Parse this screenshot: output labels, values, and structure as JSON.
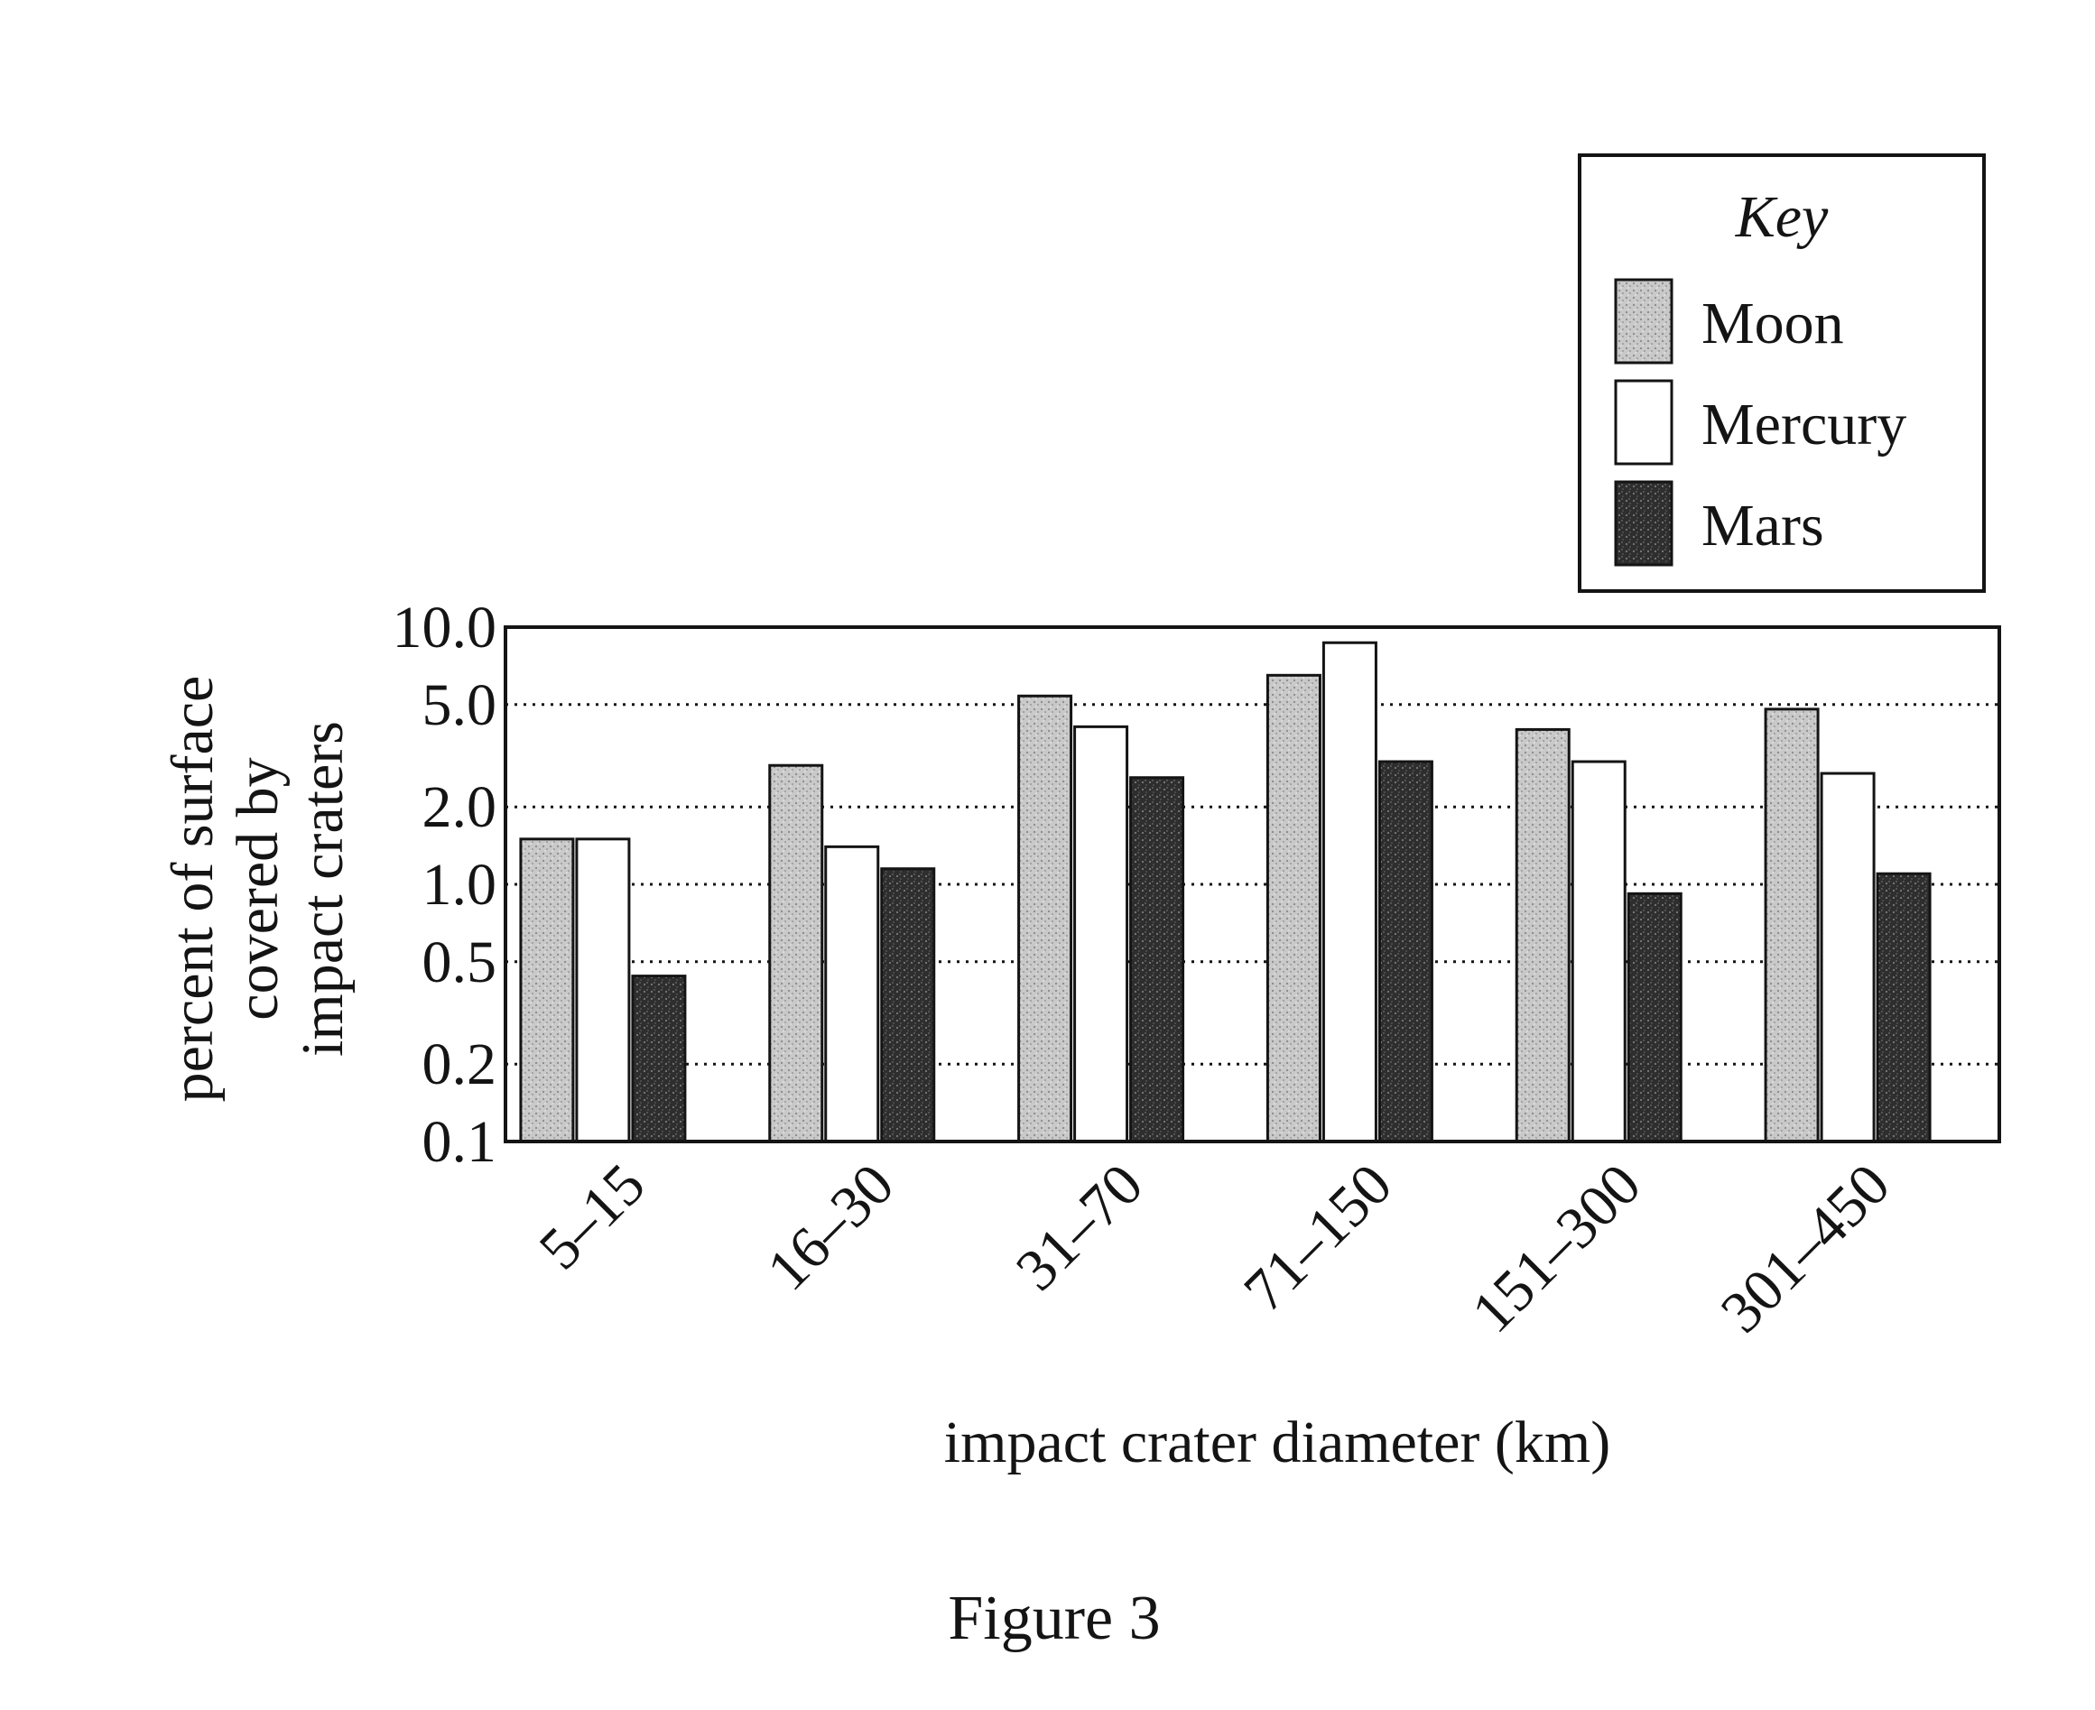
{
  "chart_data": {
    "type": "bar",
    "title": "",
    "xlabel": "impact crater diameter (km)",
    "ylabel_lines": [
      "percent of surface",
      "covered by",
      "impact craters"
    ],
    "yscale": "log",
    "ylim": [
      0.1,
      10.0
    ],
    "yticks": [
      0.1,
      0.2,
      0.5,
      1.0,
      2.0,
      5.0,
      10.0
    ],
    "ytick_labels": [
      "0.1",
      "0.2",
      "0.5",
      "1.0",
      "2.0",
      "5.0",
      "10.0"
    ],
    "grid": "horizontal dotted",
    "categories": [
      "5–15",
      "16–30",
      "31–70",
      "71–150",
      "151–300",
      "301–450"
    ],
    "series": [
      {
        "name": "Moon",
        "pattern": "light-stipple",
        "values": [
          1.5,
          2.9,
          5.4,
          6.5,
          4.0,
          4.8
        ]
      },
      {
        "name": "Mercury",
        "pattern": "white",
        "values": [
          1.5,
          1.4,
          4.1,
          8.7,
          3.0,
          2.7
        ]
      },
      {
        "name": "Mars",
        "pattern": "dark-stipple",
        "values": [
          0.44,
          1.15,
          2.6,
          3.0,
          0.92,
          1.1
        ]
      }
    ],
    "legend": {
      "title": "Key",
      "placement": "top-right, above plot"
    }
  },
  "caption": "Figure 3",
  "colors": {
    "ink": "#141414",
    "moon_fill": "#c8c8c8",
    "mercury_fill": "#ffffff",
    "mars_fill": "#3a3a3a"
  }
}
